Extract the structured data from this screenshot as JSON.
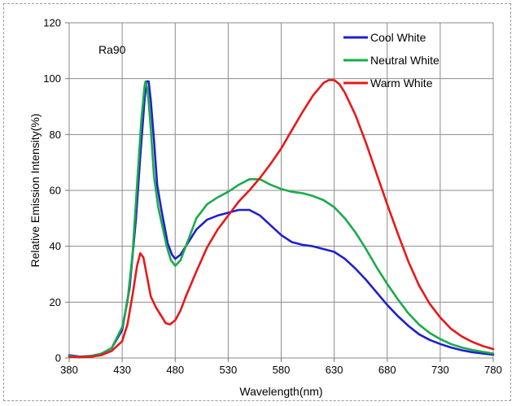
{
  "chart_data": {
    "type": "line",
    "title": "",
    "xlabel": "Wavelength(nm)",
    "ylabel": "Relative Emission Intensity(%)",
    "xlim": [
      380,
      780
    ],
    "ylim": [
      0,
      120
    ],
    "xticks": [
      380,
      430,
      480,
      530,
      580,
      630,
      680,
      730,
      780
    ],
    "yticks": [
      0,
      20,
      40,
      60,
      80,
      100,
      120
    ],
    "grid": true,
    "legend_position": "top-right",
    "annotation": "Ra90",
    "series": [
      {
        "name": "Cool White",
        "color": "#1f1fd0",
        "points": [
          [
            380,
            1
          ],
          [
            390,
            0.5
          ],
          [
            400,
            0.7
          ],
          [
            410,
            1.5
          ],
          [
            420,
            3.5
          ],
          [
            430,
            10
          ],
          [
            437,
            25
          ],
          [
            443,
            50
          ],
          [
            447,
            72
          ],
          [
            451,
            92
          ],
          [
            453,
            99
          ],
          [
            455,
            99
          ],
          [
            457,
            92
          ],
          [
            460,
            78
          ],
          [
            463,
            62
          ],
          [
            467,
            53
          ],
          [
            470,
            47
          ],
          [
            473,
            41
          ],
          [
            477,
            37
          ],
          [
            480,
            35.5
          ],
          [
            485,
            37
          ],
          [
            490,
            40
          ],
          [
            500,
            46
          ],
          [
            510,
            49.5
          ],
          [
            520,
            51
          ],
          [
            530,
            52
          ],
          [
            540,
            53
          ],
          [
            550,
            53
          ],
          [
            560,
            51
          ],
          [
            570,
            47.5
          ],
          [
            580,
            44
          ],
          [
            590,
            41.5
          ],
          [
            600,
            40.5
          ],
          [
            610,
            40
          ],
          [
            620,
            39
          ],
          [
            630,
            38
          ],
          [
            640,
            35.5
          ],
          [
            650,
            32
          ],
          [
            660,
            28
          ],
          [
            670,
            23.5
          ],
          [
            680,
            19
          ],
          [
            690,
            15
          ],
          [
            700,
            11.5
          ],
          [
            710,
            8.5
          ],
          [
            720,
            6.5
          ],
          [
            730,
            5
          ],
          [
            740,
            3.8
          ],
          [
            750,
            2.8
          ],
          [
            760,
            2.1
          ],
          [
            770,
            1.6
          ],
          [
            780,
            1.2
          ]
        ]
      },
      {
        "name": "Neutral White",
        "color": "#1aab4a",
        "points": [
          [
            380,
            0.8
          ],
          [
            390,
            0.4
          ],
          [
            400,
            0.6
          ],
          [
            410,
            1.5
          ],
          [
            420,
            3.5
          ],
          [
            430,
            11
          ],
          [
            435,
            20
          ],
          [
            440,
            38
          ],
          [
            444,
            62
          ],
          [
            448,
            85
          ],
          [
            451,
            97
          ],
          [
            452,
            99
          ],
          [
            454,
            96
          ],
          [
            457,
            82
          ],
          [
            460,
            65
          ],
          [
            464,
            54
          ],
          [
            468,
            47
          ],
          [
            472,
            40
          ],
          [
            476,
            35
          ],
          [
            480,
            33
          ],
          [
            485,
            35
          ],
          [
            490,
            40
          ],
          [
            500,
            50
          ],
          [
            510,
            55
          ],
          [
            520,
            57.5
          ],
          [
            530,
            59.5
          ],
          [
            540,
            62
          ],
          [
            550,
            64
          ],
          [
            560,
            64
          ],
          [
            570,
            62
          ],
          [
            580,
            60.5
          ],
          [
            590,
            59.5
          ],
          [
            600,
            59
          ],
          [
            610,
            58
          ],
          [
            620,
            56.5
          ],
          [
            630,
            54
          ],
          [
            640,
            50
          ],
          [
            650,
            45
          ],
          [
            660,
            39
          ],
          [
            670,
            32.5
          ],
          [
            680,
            26.5
          ],
          [
            690,
            21
          ],
          [
            700,
            16
          ],
          [
            710,
            12
          ],
          [
            720,
            9
          ],
          [
            730,
            6.8
          ],
          [
            740,
            5
          ],
          [
            750,
            3.8
          ],
          [
            760,
            2.9
          ],
          [
            770,
            2.2
          ],
          [
            780,
            1.6
          ]
        ]
      },
      {
        "name": "Warm White",
        "color": "#e81818",
        "points": [
          [
            380,
            0.5
          ],
          [
            390,
            0.3
          ],
          [
            400,
            0.4
          ],
          [
            410,
            1
          ],
          [
            420,
            2.5
          ],
          [
            430,
            6
          ],
          [
            435,
            12
          ],
          [
            440,
            23
          ],
          [
            444,
            33
          ],
          [
            447,
            37.5
          ],
          [
            450,
            36
          ],
          [
            453,
            30
          ],
          [
            457,
            22
          ],
          [
            462,
            18
          ],
          [
            467,
            15
          ],
          [
            471,
            12.5
          ],
          [
            475,
            12
          ],
          [
            480,
            13.5
          ],
          [
            485,
            17
          ],
          [
            490,
            22
          ],
          [
            500,
            31
          ],
          [
            510,
            39.5
          ],
          [
            520,
            46
          ],
          [
            530,
            51
          ],
          [
            540,
            56
          ],
          [
            550,
            60
          ],
          [
            560,
            64.5
          ],
          [
            570,
            69.5
          ],
          [
            580,
            75
          ],
          [
            590,
            81.5
          ],
          [
            600,
            88
          ],
          [
            610,
            94
          ],
          [
            620,
            98.5
          ],
          [
            625,
            99.5
          ],
          [
            630,
            99.5
          ],
          [
            635,
            98
          ],
          [
            640,
            95
          ],
          [
            650,
            87
          ],
          [
            660,
            77
          ],
          [
            670,
            66
          ],
          [
            680,
            55
          ],
          [
            690,
            44.5
          ],
          [
            700,
            34.5
          ],
          [
            710,
            26
          ],
          [
            720,
            19.5
          ],
          [
            730,
            14.5
          ],
          [
            740,
            10.5
          ],
          [
            750,
            7.8
          ],
          [
            760,
            5.8
          ],
          [
            770,
            4.3
          ],
          [
            780,
            3.2
          ]
        ]
      }
    ]
  }
}
